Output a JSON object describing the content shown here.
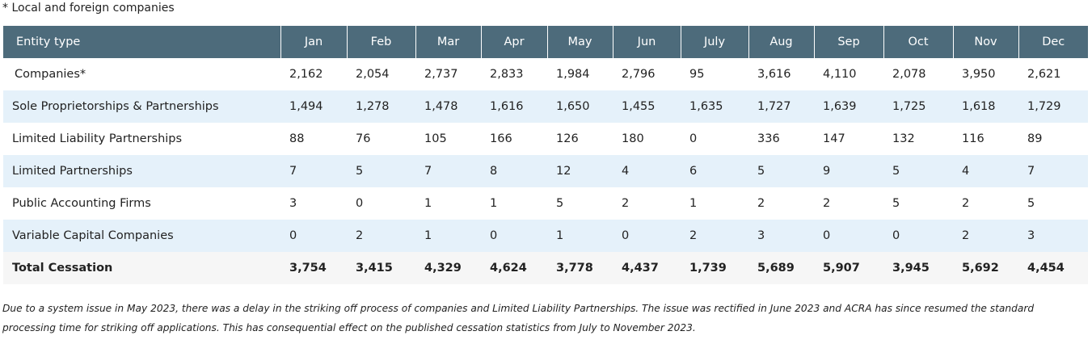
{
  "note": "* Local and foreign companies",
  "table": {
    "header": [
      "Entity type",
      "Jan",
      "Feb",
      "Mar",
      "Apr",
      "May",
      "Jun",
      "July",
      "Aug",
      "Sep",
      "Oct",
      "Nov",
      "Dec"
    ],
    "rows": [
      {
        "label": "Companies*",
        "values": [
          "2,162",
          "2,054",
          "2,737",
          "2,833",
          "1,984",
          "2,796",
          "95",
          "3,616",
          "4,110",
          "2,078",
          "3,950",
          "2,621"
        ]
      },
      {
        "label": "Sole Proprietorships & Partnerships",
        "values": [
          "1,494",
          "1,278",
          "1,478",
          "1,616",
          "1,650",
          "1,455",
          "1,635",
          "1,727",
          "1,639",
          "1,725",
          "1,618",
          "1,729"
        ]
      },
      {
        "label": "Limited Liability Partnerships",
        "values": [
          "88",
          "76",
          "105",
          "166",
          "126",
          "180",
          "0",
          "336",
          "147",
          "132",
          "116",
          "89"
        ]
      },
      {
        "label": "Limited Partnerships",
        "values": [
          "7",
          "5",
          "7",
          "8",
          "12",
          "4",
          "6",
          "5",
          "9",
          "5",
          "4",
          "7"
        ]
      },
      {
        "label": "Public Accounting Firms",
        "values": [
          "3",
          "0",
          "1",
          "1",
          "5",
          "2",
          "1",
          "2",
          "2",
          "5",
          "2",
          "5"
        ]
      },
      {
        "label": "Variable Capital Companies",
        "values": [
          "0",
          "2",
          "1",
          "0",
          "1",
          "0",
          "2",
          "3",
          "0",
          "0",
          "2",
          "3"
        ]
      }
    ],
    "total": {
      "label": "Total Cessation",
      "values": [
        "3,754",
        "3,415",
        "4,329",
        "4,624",
        "3,778",
        "4,437",
        "1,739",
        "5,689",
        "5,907",
        "3,945",
        "5,692",
        "4,454"
      ]
    }
  },
  "footnote": "Due to a system issue in May 2023, there was a delay in the striking off process of companies and Limited Liability Partnerships. The issue was rectified in June 2023 and ACRA has since resumed the standard processing time for striking off applications. This has consequential effect on the published cessation statistics from July to November 2023.",
  "colors": {
    "header_bg": "#4d6b7b",
    "header_text": "#ffffff",
    "row_shade": "#e5f1fa",
    "total_row": "#f6f6f6"
  }
}
